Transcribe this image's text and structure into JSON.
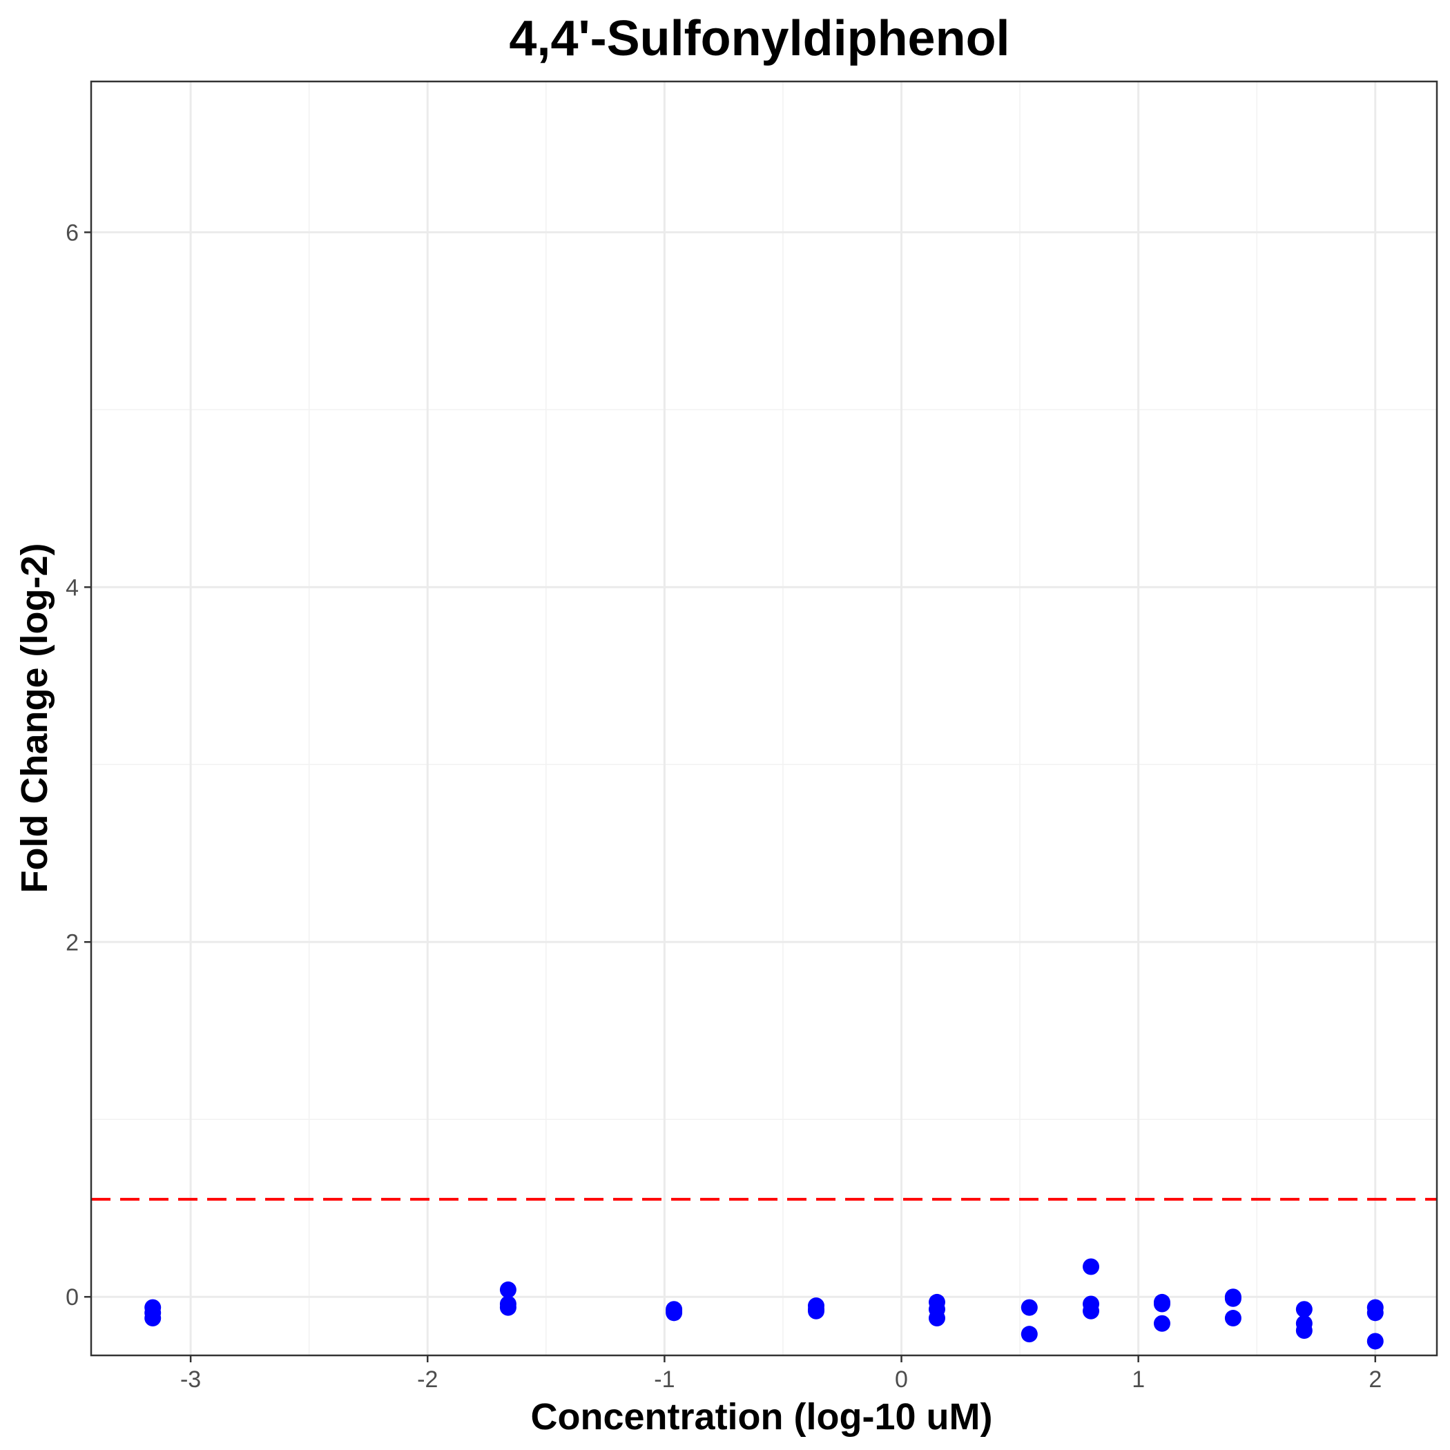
{
  "chart_data": {
    "type": "scatter",
    "title": "4,4'-Sulfonyldiphenol",
    "xlabel": "Concentration (log-10 uM)",
    "ylabel": "Fold Change (log-2)",
    "xlim": [
      -3.42,
      2.26
    ],
    "ylim": [
      -0.33,
      6.85
    ],
    "x_ticks": [
      {
        "value": -3,
        "label": "-3"
      },
      {
        "value": -2,
        "label": "-2"
      },
      {
        "value": -1,
        "label": "-1"
      },
      {
        "value": 0,
        "label": "0"
      },
      {
        "value": 1,
        "label": "1"
      },
      {
        "value": 2,
        "label": "2"
      }
    ],
    "y_ticks": [
      {
        "value": 0,
        "label": "0"
      },
      {
        "value": 2,
        "label": "2"
      },
      {
        "value": 4,
        "label": "4"
      },
      {
        "value": 6,
        "label": "6"
      }
    ],
    "x_minor_ticks": [
      -2.5,
      -1.5,
      -0.5,
      0.5,
      1.5
    ],
    "y_minor_ticks": [
      1,
      3,
      5
    ],
    "grid": true,
    "point_color": "#0000ff",
    "threshold": {
      "y": 0.55,
      "color": "#ff0000",
      "style": "dashed"
    },
    "points": [
      {
        "x": -3.16,
        "y": -0.06
      },
      {
        "x": -3.16,
        "y": -0.09
      },
      {
        "x": -3.16,
        "y": -0.12
      },
      {
        "x": -1.66,
        "y": 0.04
      },
      {
        "x": -1.66,
        "y": -0.04
      },
      {
        "x": -1.66,
        "y": -0.06
      },
      {
        "x": -0.96,
        "y": -0.07
      },
      {
        "x": -0.96,
        "y": -0.08
      },
      {
        "x": -0.96,
        "y": -0.09
      },
      {
        "x": -0.36,
        "y": -0.05
      },
      {
        "x": -0.36,
        "y": -0.07
      },
      {
        "x": -0.36,
        "y": -0.08
      },
      {
        "x": 0.15,
        "y": -0.03
      },
      {
        "x": 0.15,
        "y": -0.07
      },
      {
        "x": 0.15,
        "y": -0.12
      },
      {
        "x": 0.54,
        "y": -0.06
      },
      {
        "x": 0.54,
        "y": -0.21
      },
      {
        "x": 0.8,
        "y": 0.17
      },
      {
        "x": 0.8,
        "y": -0.04
      },
      {
        "x": 0.8,
        "y": -0.08
      },
      {
        "x": 1.1,
        "y": -0.03
      },
      {
        "x": 1.1,
        "y": -0.04
      },
      {
        "x": 1.1,
        "y": -0.15
      },
      {
        "x": 1.4,
        "y": 0.0
      },
      {
        "x": 1.4,
        "y": -0.01
      },
      {
        "x": 1.4,
        "y": -0.12
      },
      {
        "x": 1.7,
        "y": -0.07
      },
      {
        "x": 1.7,
        "y": -0.15
      },
      {
        "x": 1.7,
        "y": -0.19
      },
      {
        "x": 2.0,
        "y": -0.06
      },
      {
        "x": 2.0,
        "y": -0.09
      },
      {
        "x": 2.0,
        "y": -0.25
      }
    ]
  }
}
